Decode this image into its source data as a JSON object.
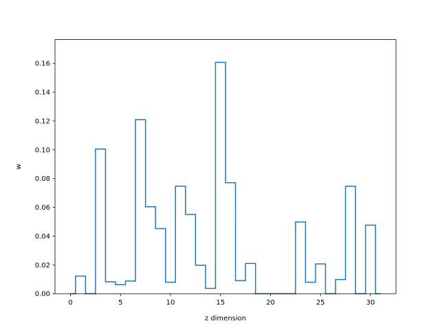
{
  "chart_data": {
    "type": "line",
    "drawstyle": "steps-mid",
    "xlabel": "z dimension",
    "ylabel": "w",
    "xlim": [
      -1.55,
      32.55
    ],
    "ylim": [
      0,
      0.1765
    ],
    "xticks": [
      0,
      5,
      10,
      15,
      20,
      25,
      30
    ],
    "yticks": [
      0.0,
      0.02,
      0.04,
      0.06,
      0.08,
      0.1,
      0.12,
      0.14,
      0.16
    ],
    "ytick_labels": [
      "0.00",
      "0.02",
      "0.04",
      "0.06",
      "0.08",
      "0.10",
      "0.12",
      "0.14",
      "0.16"
    ],
    "grid": false,
    "line_color": "#1f77b4",
    "x": [
      0,
      1,
      2,
      3,
      4,
      5,
      6,
      7,
      8,
      9,
      10,
      11,
      12,
      13,
      14,
      15,
      16,
      17,
      18,
      19,
      20,
      21,
      22,
      23,
      24,
      25,
      26,
      27,
      28,
      29,
      30,
      31
    ],
    "values": [
      0.0,
      0.0122,
      0.0,
      0.1005,
      0.0083,
      0.0063,
      0.0088,
      0.1209,
      0.0604,
      0.0452,
      0.008,
      0.0747,
      0.0551,
      0.0198,
      0.0037,
      0.1607,
      0.0771,
      0.0091,
      0.021,
      0.0,
      0.0,
      0.0,
      0.0,
      0.0498,
      0.008,
      0.0207,
      0.0,
      0.0098,
      0.0746,
      0.0,
      0.0476,
      0.0
    ]
  }
}
